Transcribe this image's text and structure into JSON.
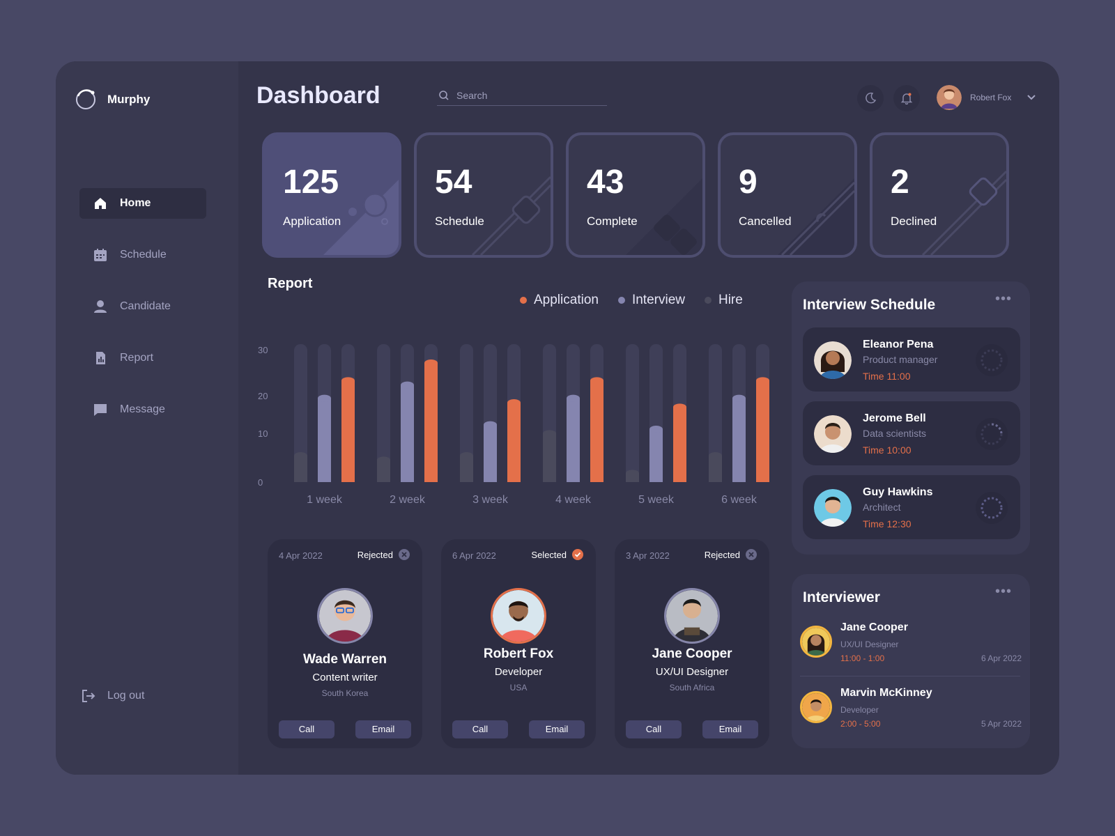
{
  "app": {
    "name": "Murphy"
  },
  "header": {
    "title": "Dashboard",
    "search_placeholder": "Search",
    "user_name": "Robert Fox"
  },
  "sidebar": {
    "items": [
      {
        "label": "Home",
        "icon": "home-icon",
        "active": true
      },
      {
        "label": "Schedule",
        "icon": "calendar-icon"
      },
      {
        "label": "Candidate",
        "icon": "user-icon"
      },
      {
        "label": "Report",
        "icon": "report-icon"
      },
      {
        "label": "Message",
        "icon": "message-icon"
      }
    ],
    "logout_label": "Log out"
  },
  "stats": [
    {
      "value": "125",
      "label": "Application"
    },
    {
      "value": "54",
      "label": "Schedule"
    },
    {
      "value": "43",
      "label": "Complete"
    },
    {
      "value": "9",
      "label": "Cancelled"
    },
    {
      "value": "2",
      "label": "Declined"
    }
  ],
  "report": {
    "title": "Report"
  },
  "chart_data": {
    "type": "bar",
    "categories": [
      "1 week",
      "2 week",
      "3 week",
      "4 week",
      "5 week",
      "6 week"
    ],
    "series": [
      {
        "name": "Hire",
        "color": "#4a4a5c",
        "values": [
          6,
          5,
          6,
          11,
          2,
          6
        ]
      },
      {
        "name": "Interview",
        "color": "#8585af",
        "values": [
          19,
          22,
          13,
          19,
          12,
          19
        ]
      },
      {
        "name": "Application",
        "color": "#e4704a",
        "values": [
          23,
          27,
          18,
          23,
          17,
          23
        ]
      }
    ],
    "yticks": [
      "0",
      "10",
      "20",
      "30"
    ],
    "ylim": [
      0,
      30
    ],
    "legend_order": [
      "Application",
      "Interview",
      "Hire"
    ],
    "legend_position": "top-right"
  },
  "candidates": [
    {
      "date": "4 Apr 2022",
      "status": "Rejected",
      "name": "Wade Warren",
      "role": "Content writer",
      "location": "South Korea",
      "call": "Call",
      "email": "Email"
    },
    {
      "date": "6 Apr 2022",
      "status": "Selected",
      "name": "Robert Fox",
      "role": "Developer",
      "location": "USA",
      "call": "Call",
      "email": "Email"
    },
    {
      "date": "3 Apr 2022",
      "status": "Rejected",
      "name": "Jane Cooper",
      "role": "UX/UI Designer",
      "location": "South Africa",
      "call": "Call",
      "email": "Email"
    }
  ],
  "interview_schedule": {
    "title": "Interview Schedule",
    "items": [
      {
        "name": "Eleanor Pena",
        "role": "Product manager",
        "time": "Time 11:00"
      },
      {
        "name": "Jerome Bell",
        "role": "Data scientists",
        "time": "Time 10:00"
      },
      {
        "name": "Guy Hawkins",
        "role": "Architect",
        "time": "Time 12:30"
      }
    ]
  },
  "interviewer": {
    "title": "Interviewer",
    "items": [
      {
        "name": "Jane Cooper",
        "role": "UX/UI Designer",
        "time": "11:00 - 1:00",
        "date": "6 Apr 2022"
      },
      {
        "name": "Marvin McKinney",
        "role": "Developer",
        "time": "2:00 - 5:00",
        "date": "5 Apr 2022"
      }
    ]
  },
  "colors": {
    "accent": "#e4704a",
    "interview": "#8585af",
    "hire": "#4a4a5c",
    "primary_card": "#4f4f78"
  }
}
